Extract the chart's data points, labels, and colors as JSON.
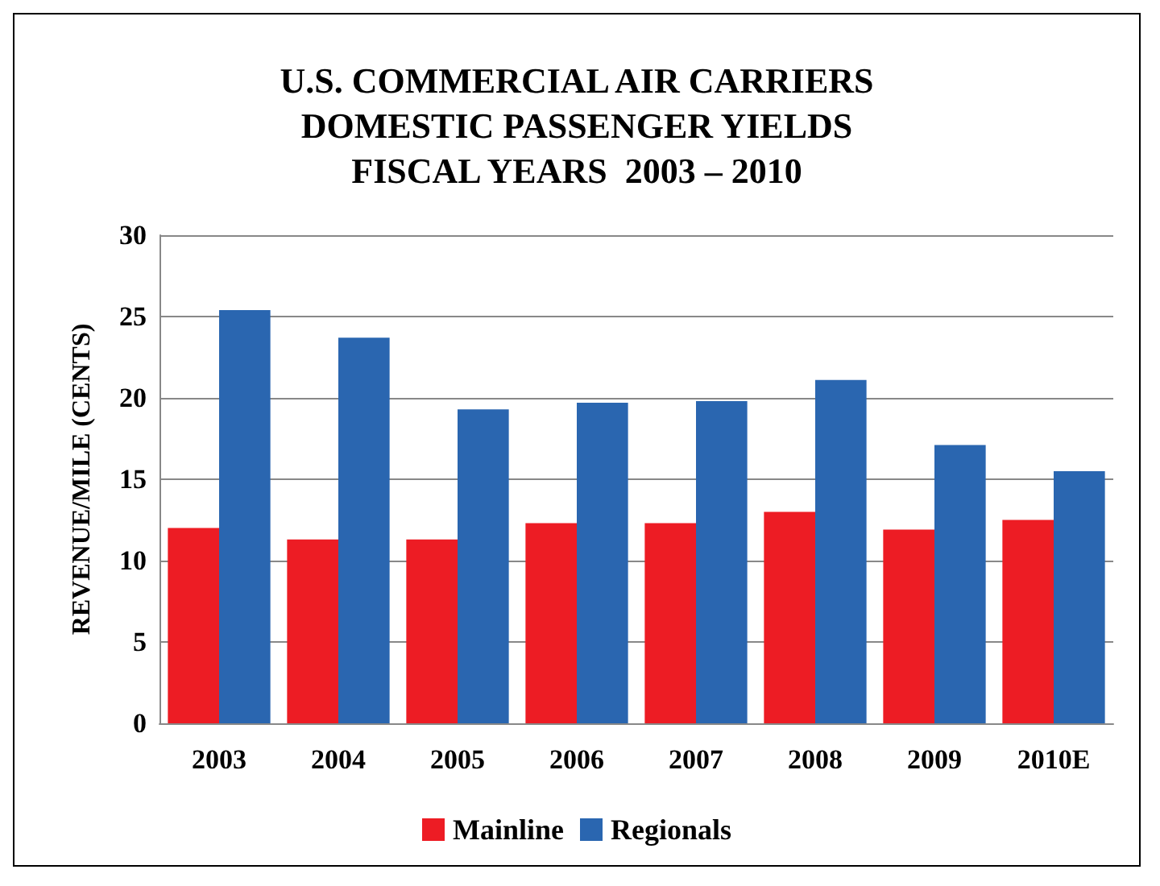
{
  "chart_data": {
    "type": "bar",
    "title": "U.S. COMMERCIAL AIR CARRIERS\nDOMESTIC PASSENGER YIELDS\nFISCAL YEARS  2003 – 2010",
    "ylabel": "REVENUE/MILE (CENTS)",
    "categories": [
      "2003",
      "2004",
      "2005",
      "2006",
      "2007",
      "2008",
      "2009",
      "2010E"
    ],
    "series": [
      {
        "name": "Mainline",
        "color": "#ed1c24",
        "values": [
          12.0,
          11.3,
          11.3,
          12.3,
          12.3,
          13.0,
          11.9,
          12.5
        ]
      },
      {
        "name": "Regionals",
        "color": "#2a66b0",
        "values": [
          25.4,
          23.7,
          19.3,
          19.7,
          19.8,
          21.1,
          17.1,
          15.5
        ]
      }
    ],
    "ylim": [
      0,
      30
    ],
    "yticks": [
      0,
      5,
      10,
      15,
      20,
      25,
      30
    ],
    "grid": "y",
    "legend": "bottom"
  }
}
